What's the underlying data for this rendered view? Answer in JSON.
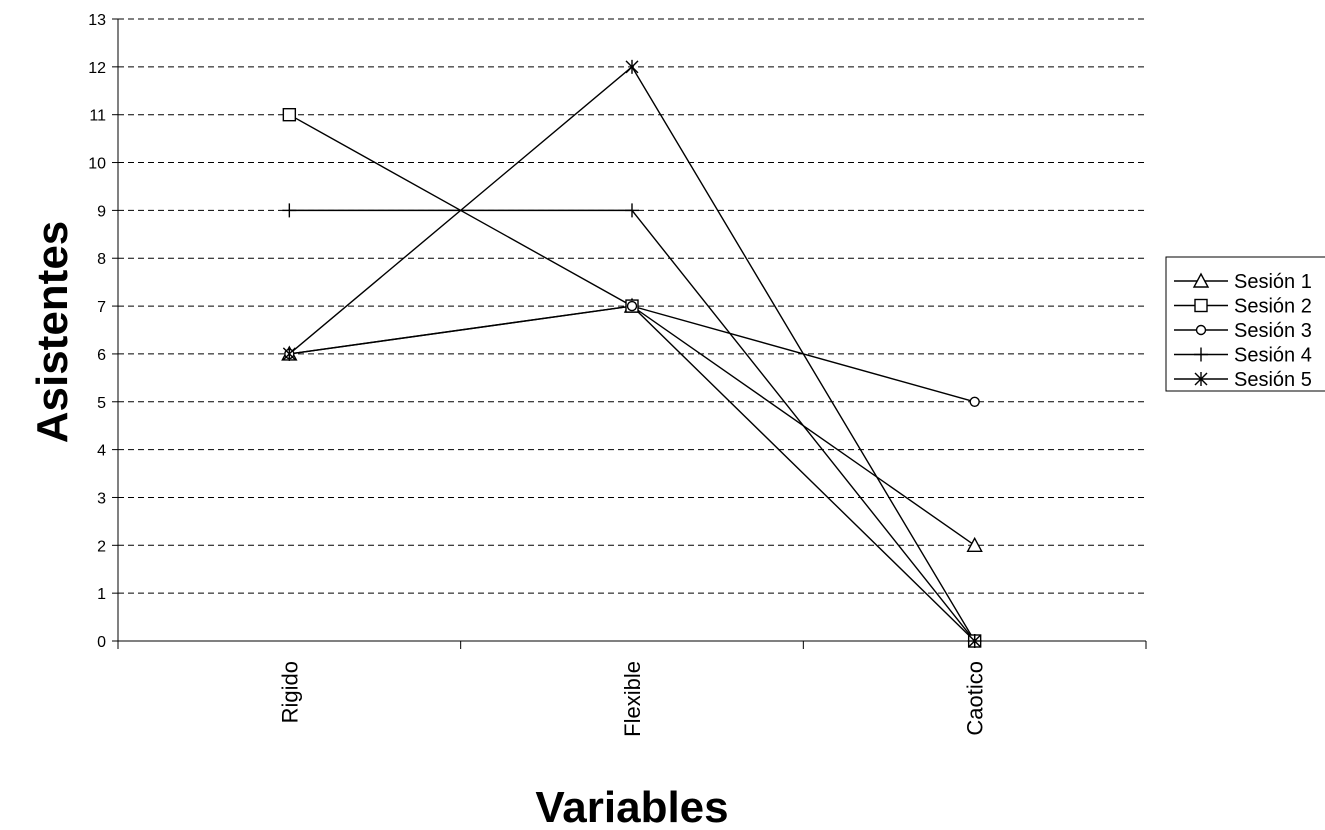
{
  "chart_data": {
    "type": "line",
    "categories": [
      "Rigido",
      "Flexible",
      "Caotico"
    ],
    "series": [
      {
        "name": "Sesión 1",
        "marker": "triangle",
        "values": [
          6,
          7,
          2
        ]
      },
      {
        "name": "Sesión 2",
        "marker": "square",
        "values": [
          11,
          7,
          0
        ]
      },
      {
        "name": "Sesión 3",
        "marker": "circle",
        "values": [
          6,
          7,
          5
        ]
      },
      {
        "name": "Sesión 4",
        "marker": "plus",
        "values": [
          9,
          9,
          0
        ]
      },
      {
        "name": "Sesión 5",
        "marker": "asterisk",
        "values": [
          6,
          12,
          0
        ]
      }
    ],
    "title": "",
    "xlabel": "Variables",
    "ylabel": "Asistentes",
    "ylim": [
      0,
      13
    ],
    "yticks": [
      "0",
      "1",
      "2",
      "3",
      "4",
      "5",
      "6",
      "7",
      "8",
      "9",
      "10",
      "11",
      "12",
      "13"
    ],
    "grid": "dashed horizontal",
    "legend": "right",
    "line_color": "#000000"
  }
}
